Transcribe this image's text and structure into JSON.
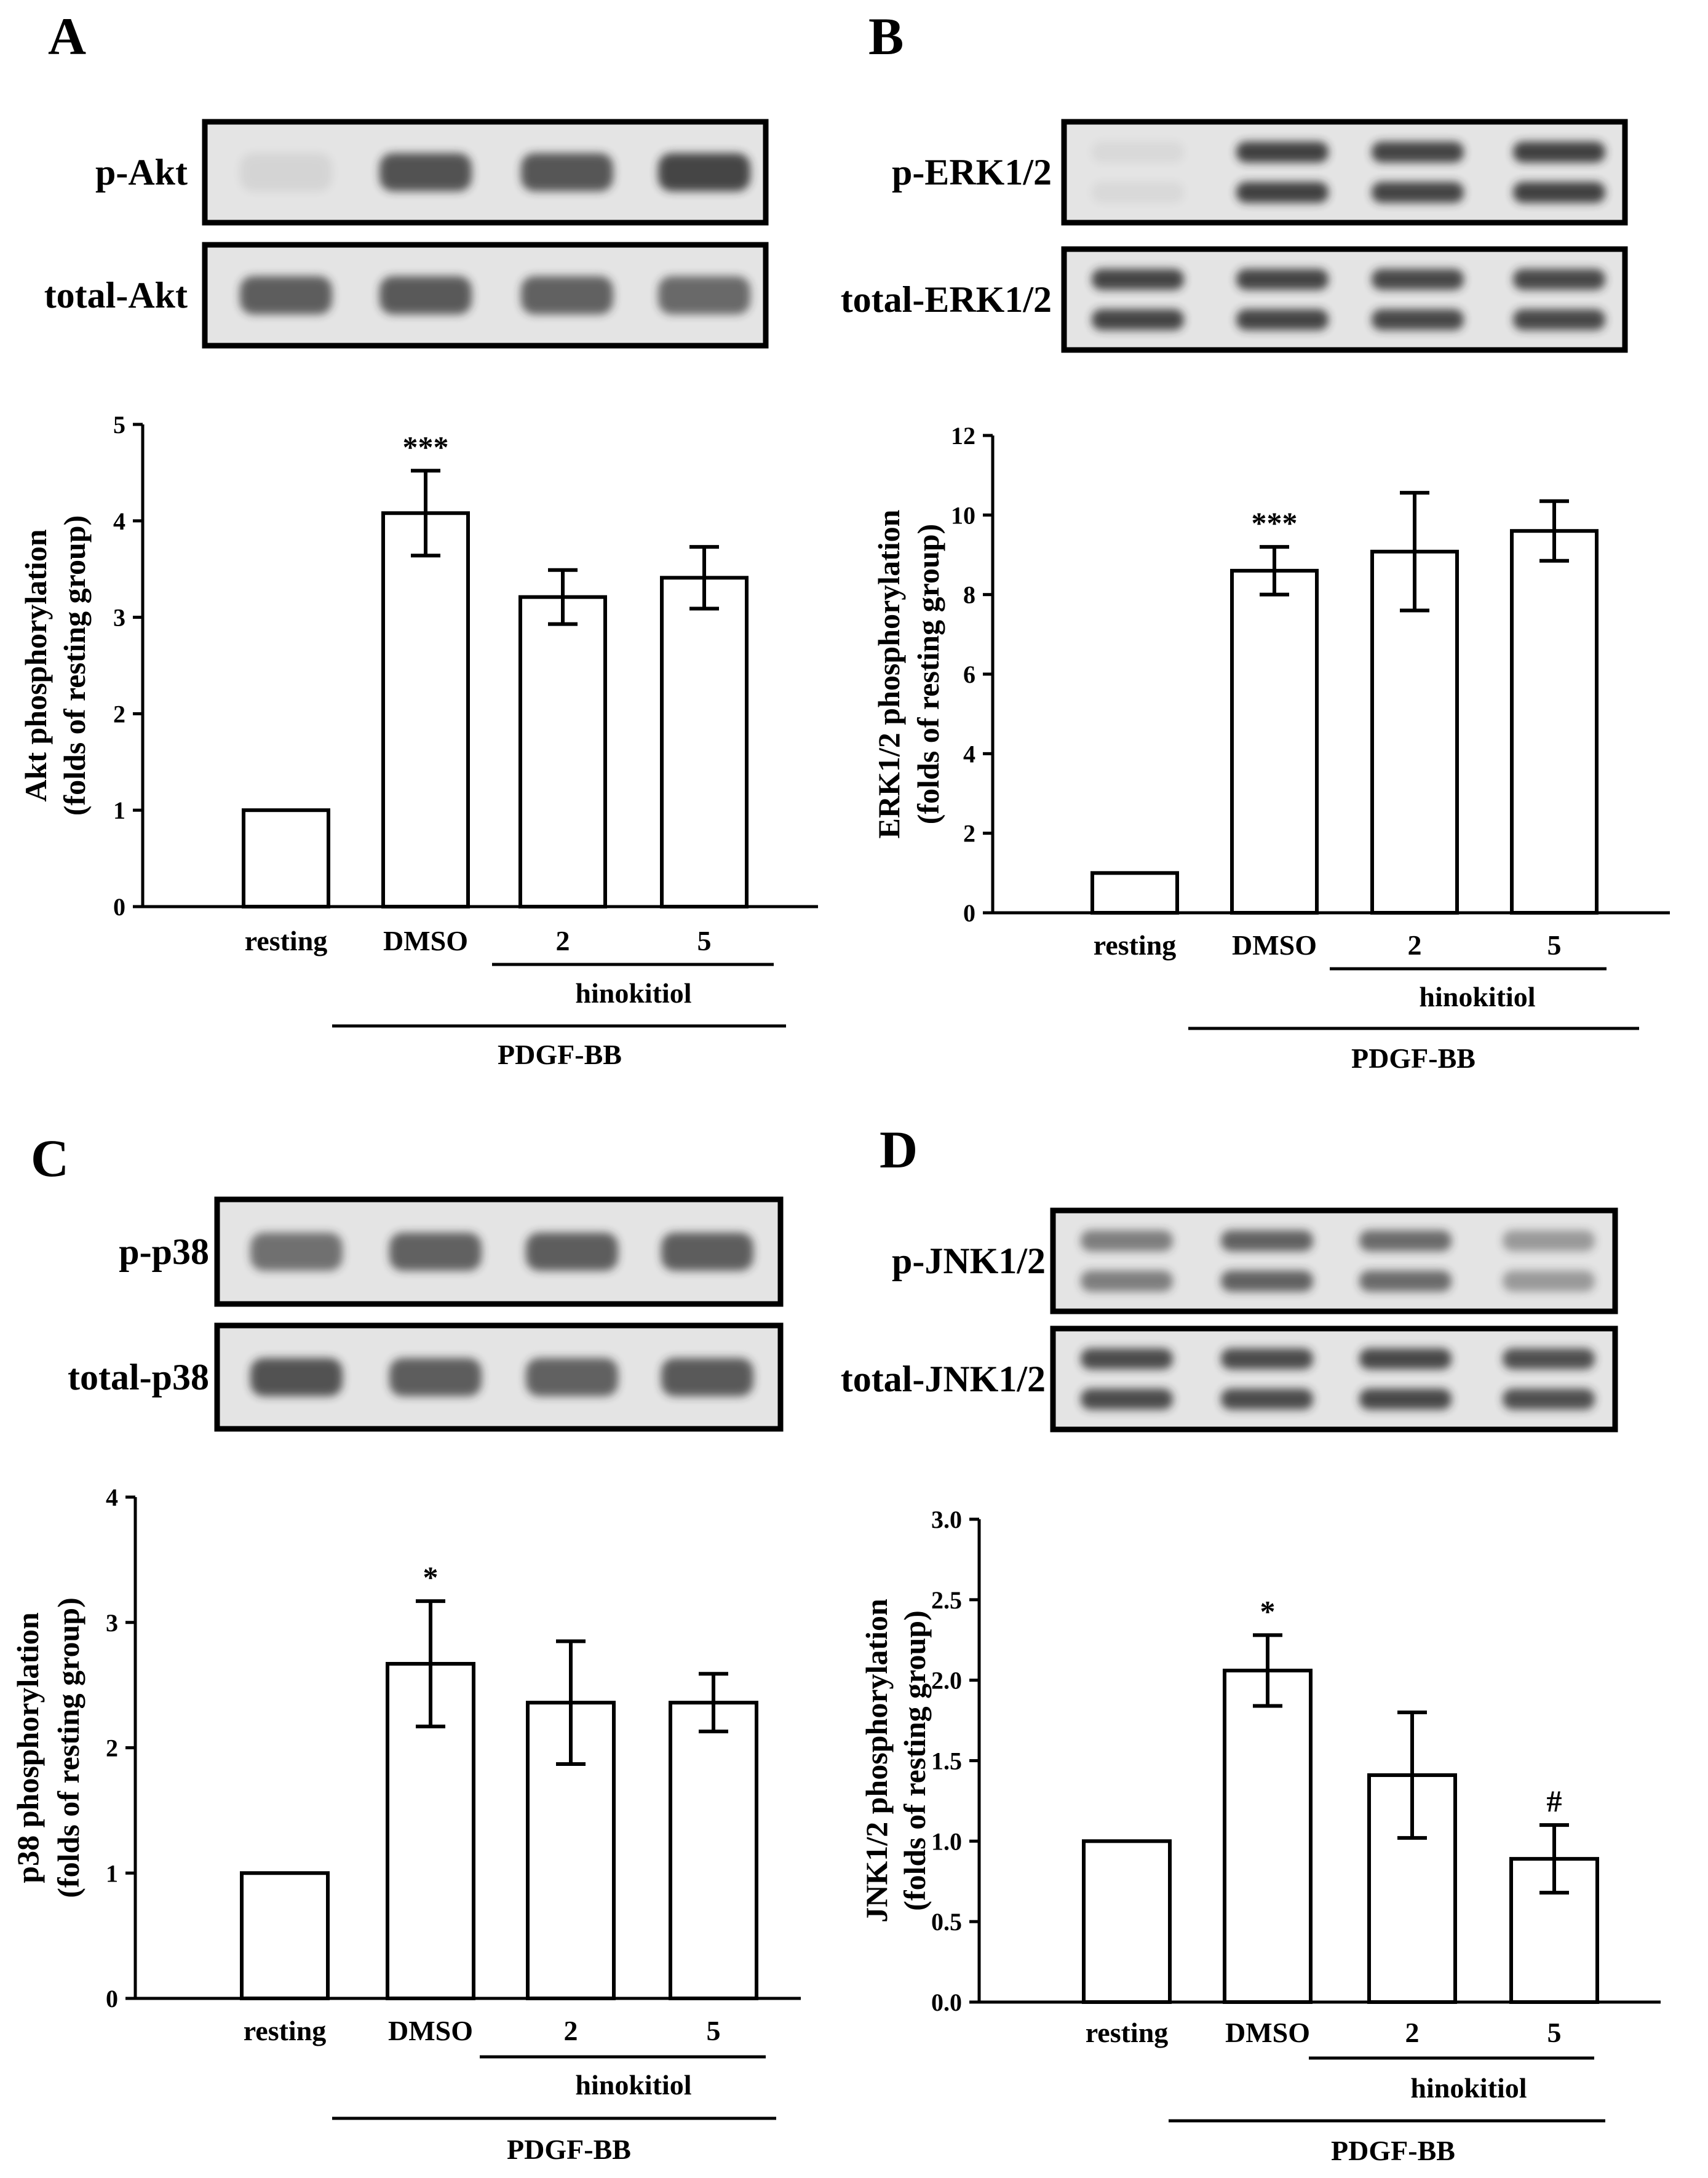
{
  "chart_data": [
    {
      "panel": "A",
      "type": "bar",
      "blot_labels": [
        "p-Akt",
        "total-Akt"
      ],
      "categories": [
        "resting",
        "DMSO",
        "2",
        "5"
      ],
      "values": [
        1.0,
        4.08,
        3.21,
        3.41
      ],
      "errors": [
        0,
        0.44,
        0.28,
        0.32
      ],
      "annotations": [
        "",
        "***",
        "",
        ""
      ],
      "ylabel_line1": "Akt phosphorylation",
      "ylabel_line2": "(folds of resting group)",
      "ylim": [
        0,
        5
      ],
      "yticks": [
        "0",
        "1",
        "2",
        "3",
        "4",
        "5"
      ],
      "tick_values": [
        0,
        1,
        2,
        3,
        4,
        5
      ],
      "group_label_1": "hinokitiol",
      "group_label_2": "PDGF-BB",
      "band_intensity": {
        "top": [
          0.08,
          0.78,
          0.76,
          0.85
        ],
        "bottom": [
          0.72,
          0.74,
          0.7,
          0.66
        ]
      },
      "band_double": {
        "top": false,
        "bottom": false
      }
    },
    {
      "panel": "B",
      "type": "bar",
      "blot_labels": [
        "p-ERK1/2",
        "total-ERK1/2"
      ],
      "categories": [
        "resting",
        "DMSO",
        "2",
        "5"
      ],
      "values": [
        1.0,
        8.6,
        9.08,
        9.6
      ],
      "errors": [
        0,
        0.6,
        1.48,
        0.75
      ],
      "annotations": [
        "",
        "***",
        "",
        ""
      ],
      "ylabel_line1": "ERK1/2 phosphorylation",
      "ylabel_line2": "(folds of resting group)",
      "ylim": [
        0,
        12
      ],
      "yticks": [
        "0",
        "2",
        "4",
        "6",
        "8",
        "10",
        "12"
      ],
      "tick_values": [
        0,
        2,
        4,
        6,
        8,
        10,
        12
      ],
      "group_label_1": "hinokitiol",
      "group_label_2": "PDGF-BB",
      "band_intensity": {
        "top": [
          0.06,
          0.88,
          0.86,
          0.88
        ],
        "bottom": [
          0.86,
          0.86,
          0.84,
          0.84
        ]
      },
      "band_double": {
        "top": true,
        "bottom": true
      }
    },
    {
      "panel": "C",
      "type": "bar",
      "blot_labels": [
        "p-p38",
        "total-p38"
      ],
      "categories": [
        "resting",
        "DMSO",
        "2",
        "5"
      ],
      "values": [
        1.0,
        2.67,
        2.36,
        2.36
      ],
      "errors": [
        0,
        0.5,
        0.49,
        0.23
      ],
      "annotations": [
        "",
        "*",
        "",
        ""
      ],
      "ylabel_line1": "p38 phosphorylation",
      "ylabel_line2": "(folds of resting group)",
      "ylim": [
        0,
        4
      ],
      "yticks": [
        "0",
        "1",
        "2",
        "3",
        "4"
      ],
      "tick_values": [
        0,
        1,
        2,
        3,
        4
      ],
      "group_label_1": "hinokitiol",
      "group_label_2": "PDGF-BB",
      "band_intensity": {
        "top": [
          0.62,
          0.7,
          0.72,
          0.72
        ],
        "bottom": [
          0.78,
          0.72,
          0.7,
          0.74
        ]
      },
      "band_double": {
        "top": false,
        "bottom": false
      }
    },
    {
      "panel": "D",
      "type": "bar",
      "blot_labels": [
        "p-JNK1/2",
        "total-JNK1/2"
      ],
      "categories": [
        "resting",
        "DMSO",
        "2",
        "5"
      ],
      "values": [
        1.0,
        2.06,
        1.41,
        0.89
      ],
      "errors": [
        0,
        0.22,
        0.39,
        0.21
      ],
      "annotations": [
        "",
        "*",
        "",
        "#"
      ],
      "ylabel_line1": "JNK1/2 phosphorylation",
      "ylabel_line2": "(folds of resting group)",
      "ylim": [
        0,
        3
      ],
      "yticks": [
        "0.0",
        "0.5",
        "1.0",
        "1.5",
        "2.0",
        "2.5",
        "3.0"
      ],
      "tick_values": [
        0,
        0.5,
        1,
        1.5,
        2,
        2.5,
        3
      ],
      "group_label_1": "hinokitiol",
      "group_label_2": "PDGF-BB",
      "band_intensity": {
        "top": [
          0.55,
          0.7,
          0.65,
          0.4
        ],
        "bottom": [
          0.82,
          0.82,
          0.84,
          0.8
        ]
      },
      "band_double": {
        "top": true,
        "bottom": true
      }
    }
  ],
  "colors": {
    "bar_fill": "#ffffff",
    "ink": "#000000",
    "blot_bg": "#e4e4e4",
    "band": "#2a2a2a"
  }
}
